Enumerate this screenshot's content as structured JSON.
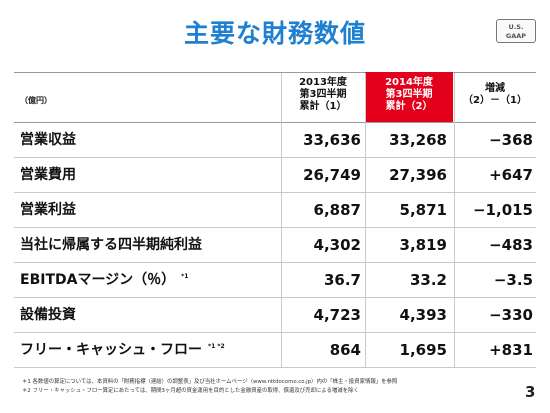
{
  "title": "主要な財務数値",
  "badge": {
    "line1": "U.S.",
    "line2": "GAAP"
  },
  "unit": "（億円）",
  "columns": {
    "prior": {
      "line1": "2013年度",
      "line2": "第3四半期",
      "line3": "累計（1）"
    },
    "current": {
      "line1": "2014年度",
      "line2": "第3四半期",
      "line3": "累計（2）"
    },
    "change": {
      "line1": "増減",
      "line2": "（2）－（1）"
    }
  },
  "rows": [
    {
      "label": "営業収益",
      "note": "",
      "prior": "33,636",
      "current": "33,268",
      "change": "−368"
    },
    {
      "label": "営業費用",
      "note": "",
      "prior": "26,749",
      "current": "27,396",
      "change": "+647"
    },
    {
      "label": "営業利益",
      "note": "",
      "prior": "6,887",
      "current": "5,871",
      "change": "−1,015"
    },
    {
      "label": "当社に帰属する四半期純利益",
      "note": "",
      "prior": "4,302",
      "current": "3,819",
      "change": "−483"
    },
    {
      "label": "EBITDAマージン（％）",
      "note": "*1",
      "prior": "36.7",
      "current": "33.2",
      "change": "−3.5"
    },
    {
      "label": "設備投資",
      "note": "",
      "prior": "4,723",
      "current": "4,393",
      "change": "−330"
    },
    {
      "label": "フリー・キャッシュ・フロー",
      "note": "*1 *2",
      "prior": "864",
      "current": "1,695",
      "change": "+831"
    }
  ],
  "footnotes": [
    "＊1 各数値の算定については、本資料の「財務指標（連結）の調整表」及び当社ホームページ（www.nttdocomo.co.jp）内の「株主・投資家情報」を参照",
    "＊2 フリー・キャッシュ・フロー算定にあたっては、期間3ヶ月超の資金運用を目的とした金融資産の取得、償還及び売却による増減を除く"
  ],
  "page_number": "3"
}
